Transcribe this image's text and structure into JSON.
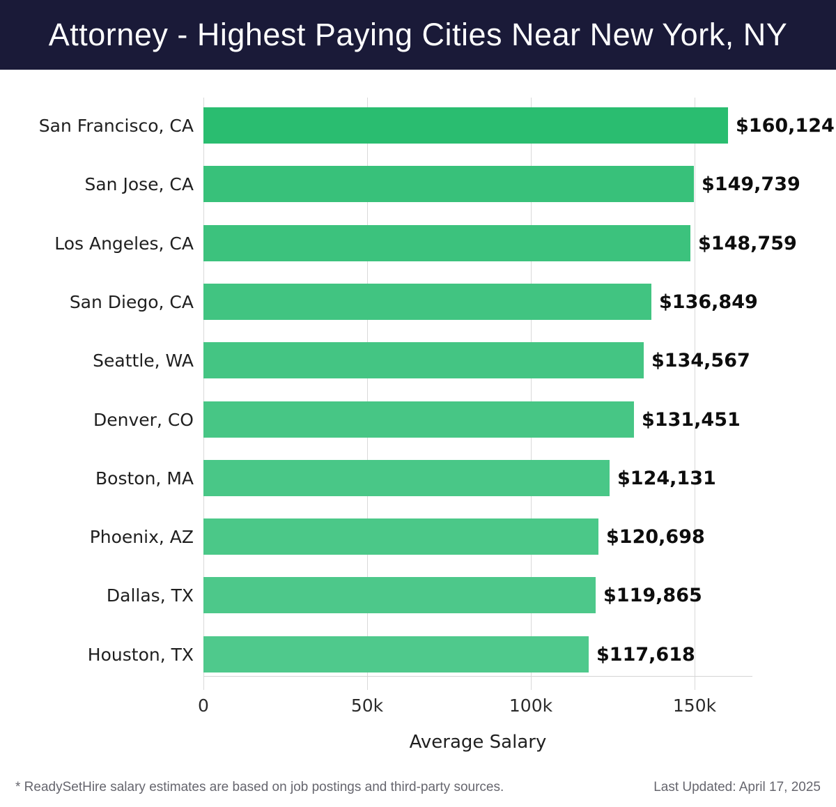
{
  "header": {
    "title": "Attorney - Highest Paying Cities Near New York, NY",
    "bg_color": "#1a1a38",
    "text_color": "#ffffff"
  },
  "chart_data": {
    "type": "bar",
    "orientation": "horizontal",
    "title": "Attorney - Highest Paying Cities Near New York, NY",
    "categories": [
      "San Francisco, CA",
      "San Jose, CA",
      "Los Angeles, CA",
      "San Diego, CA",
      "Seattle, WA",
      "Denver, CO",
      "Boston, MA",
      "Phoenix, AZ",
      "Dallas, TX",
      "Houston, TX"
    ],
    "values": [
      160124,
      149739,
      148759,
      136849,
      134567,
      131451,
      124131,
      120698,
      119865,
      117618
    ],
    "value_labels": [
      "$160,124",
      "$149,739",
      "$148,759",
      "$136,849",
      "$134,567",
      "$131,451",
      "$124,131",
      "$120,698",
      "$119,865",
      "$117,618"
    ],
    "bar_colors": [
      "#2abd70",
      "#38c17a",
      "#3cc27d",
      "#41c481",
      "#44c583",
      "#47c685",
      "#49c787",
      "#4bc888",
      "#4dc88a",
      "#4fc98c"
    ],
    "xlabel": "Average Salary",
    "ylabel": "",
    "xlim": [
      0,
      167500
    ],
    "x_ticks": [
      {
        "value": 0,
        "label": "0"
      },
      {
        "value": 50000,
        "label": "50k"
      },
      {
        "value": 100000,
        "label": "100k"
      },
      {
        "value": 150000,
        "label": "150k"
      }
    ],
    "grid": true,
    "legend": false,
    "gridline_color": "#d9d9d9"
  },
  "footer": {
    "note": "* ReadySetHire salary estimates are based on job postings and third-party sources.",
    "last_updated": "Last Updated: April 17, 2025"
  }
}
